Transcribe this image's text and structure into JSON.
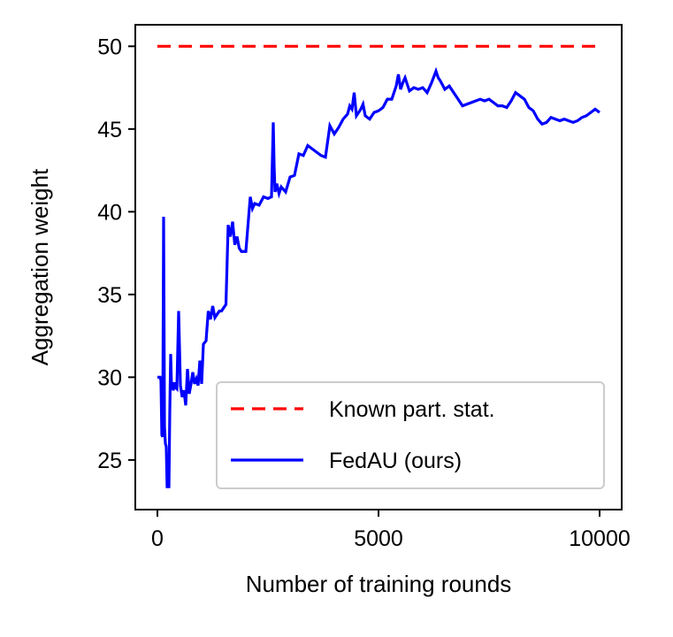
{
  "chart_data": {
    "type": "line",
    "title": "",
    "xlabel": "Number of training rounds",
    "ylabel": "Aggregation weight",
    "xlim": [
      -500,
      10500
    ],
    "ylim": [
      22,
      51.3
    ],
    "xticks": [
      0,
      5000,
      10000
    ],
    "xtick_labels": [
      "0",
      "5000",
      "10000"
    ],
    "yticks": [
      25,
      30,
      35,
      40,
      45,
      50
    ],
    "ytick_labels": [
      "25",
      "30",
      "35",
      "40",
      "45",
      "50"
    ],
    "grid": false,
    "legend_position": "lower right",
    "series": [
      {
        "name": "Known part. stat.",
        "color": "#ff0000",
        "style": "dashed",
        "x": [
          0,
          10000
        ],
        "y": [
          50,
          50
        ]
      },
      {
        "name": "FedAU (ours)",
        "color": "#0000ff",
        "style": "solid",
        "x": [
          0,
          60,
          80,
          100,
          120,
          140,
          160,
          180,
          200,
          220,
          240,
          260,
          280,
          300,
          320,
          340,
          360,
          380,
          400,
          440,
          480,
          520,
          560,
          600,
          640,
          680,
          720,
          760,
          800,
          840,
          880,
          920,
          960,
          1000,
          1040,
          1100,
          1150,
          1200,
          1250,
          1300,
          1350,
          1400,
          1450,
          1500,
          1550,
          1600,
          1650,
          1700,
          1750,
          1800,
          1850,
          1900,
          2000,
          2100,
          2150,
          2200,
          2300,
          2400,
          2500,
          2580,
          2620,
          2640,
          2660,
          2700,
          2750,
          2800,
          2900,
          3000,
          3100,
          3200,
          3300,
          3400,
          3500,
          3600,
          3700,
          3800,
          3900,
          4000,
          4050,
          4100,
          4200,
          4300,
          4350,
          4400,
          4450,
          4500,
          4550,
          4600,
          4650,
          4700,
          4800,
          4900,
          5000,
          5100,
          5200,
          5300,
          5400,
          5450,
          5500,
          5550,
          5600,
          5700,
          5800,
          5900,
          6000,
          6100,
          6200,
          6300,
          6350,
          6400,
          6500,
          6600,
          6700,
          6800,
          6900,
          7000,
          7100,
          7200,
          7300,
          7400,
          7500,
          7600,
          7700,
          7800,
          7900,
          8000,
          8100,
          8200,
          8300,
          8400,
          8500,
          8600,
          8700,
          8800,
          8900,
          9000,
          9100,
          9200,
          9300,
          9400,
          9500,
          9600,
          9700,
          9800,
          9900,
          10000
        ],
        "y": [
          30.0,
          30.0,
          29.8,
          26.5,
          26.4,
          39.7,
          27.0,
          26.0,
          25.8,
          23.3,
          24.9,
          23.3,
          28.0,
          31.4,
          29.3,
          29.5,
          29.2,
          29.7,
          29.4,
          29.3,
          34.0,
          29.5,
          28.8,
          29.2,
          28.3,
          30.5,
          29.0,
          29.6,
          30.3,
          29.6,
          29.9,
          29.5,
          31.0,
          29.6,
          32.0,
          32.2,
          34.0,
          33.5,
          34.3,
          33.6,
          33.8,
          34.0,
          34.0,
          34.2,
          34.4,
          39.2,
          38.5,
          39.4,
          38.0,
          38.5,
          37.8,
          37.6,
          37.6,
          40.9,
          40.2,
          40.5,
          40.4,
          40.9,
          40.8,
          40.9,
          45.4,
          42.7,
          41.2,
          41.7,
          41.1,
          41.5,
          41.2,
          42.1,
          42.2,
          43.5,
          43.4,
          44.0,
          43.8,
          43.6,
          43.4,
          43.3,
          45.2,
          44.7,
          44.9,
          45.1,
          45.6,
          45.9,
          46.4,
          46.2,
          47.2,
          45.8,
          46.0,
          46.2,
          46.5,
          45.8,
          45.6,
          46.0,
          46.1,
          46.3,
          46.8,
          46.8,
          47.6,
          48.3,
          47.4,
          47.8,
          48.1,
          47.3,
          47.5,
          47.4,
          47.5,
          47.2,
          47.8,
          48.5,
          48.1,
          47.9,
          47.4,
          47.6,
          47.2,
          46.8,
          46.4,
          46.5,
          46.6,
          46.7,
          46.8,
          46.7,
          46.8,
          46.6,
          46.4,
          46.4,
          46.3,
          46.7,
          47.2,
          47.0,
          46.8,
          46.3,
          46.1,
          45.6,
          45.3,
          45.4,
          45.7,
          45.6,
          45.5,
          45.6,
          45.5,
          45.4,
          45.5,
          45.7,
          45.8,
          46.0,
          46.2,
          46.0
        ]
      }
    ]
  }
}
